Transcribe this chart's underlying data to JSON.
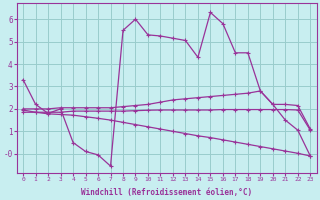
{
  "xlabel": "Windchill (Refroidissement éolien,°C)",
  "bg_color": "#c8eef0",
  "grid_color": "#99cccc",
  "line_color": "#993399",
  "xlim": [
    -0.5,
    23.5
  ],
  "ylim": [
    -0.85,
    6.7
  ],
  "xticks": [
    0,
    1,
    2,
    3,
    4,
    5,
    6,
    7,
    8,
    9,
    10,
    11,
    12,
    13,
    14,
    15,
    16,
    17,
    18,
    19,
    20,
    21,
    22,
    23
  ],
  "yticks": [
    0,
    1,
    2,
    3,
    4,
    5,
    6
  ],
  "ytick_labels": [
    "-0",
    "1",
    "2",
    "3",
    "4",
    "5",
    "6"
  ],
  "lines": [
    {
      "x": [
        0,
        1,
        2,
        3,
        4,
        5,
        6,
        7,
        8,
        9,
        10,
        11,
        12,
        13,
        14,
        15,
        16,
        17,
        18,
        19,
        20,
        21,
        22,
        23
      ],
      "y": [
        3.3,
        2.2,
        1.8,
        2.0,
        0.5,
        0.1,
        -0.05,
        -0.55,
        5.5,
        6.0,
        5.3,
        5.25,
        5.15,
        5.05,
        4.3,
        6.3,
        5.8,
        4.5,
        4.5,
        2.8,
        2.2,
        1.5,
        1.05,
        -0.1
      ]
    },
    {
      "x": [
        0,
        1,
        2,
        3,
        4,
        5,
        6,
        7,
        8,
        9,
        10,
        11,
        12,
        13,
        14,
        15,
        16,
        17,
        18,
        19,
        20,
        21,
        22,
        23
      ],
      "y": [
        2.0,
        2.0,
        2.0,
        2.05,
        2.05,
        2.05,
        2.05,
        2.05,
        2.1,
        2.15,
        2.2,
        2.3,
        2.4,
        2.45,
        2.5,
        2.55,
        2.6,
        2.65,
        2.7,
        2.8,
        2.2,
        2.2,
        2.15,
        1.1
      ]
    },
    {
      "x": [
        0,
        1,
        2,
        3,
        4,
        5,
        6,
        7,
        8,
        9,
        10,
        11,
        12,
        13,
        14,
        15,
        16,
        17,
        18,
        19,
        20,
        21,
        22,
        23
      ],
      "y": [
        1.85,
        1.85,
        1.85,
        1.85,
        1.9,
        1.9,
        1.9,
        1.9,
        1.9,
        1.92,
        1.94,
        1.95,
        1.95,
        1.95,
        1.95,
        1.95,
        1.97,
        1.97,
        1.97,
        1.97,
        1.97,
        1.97,
        1.95,
        1.05
      ]
    },
    {
      "x": [
        0,
        1,
        2,
        3,
        4,
        5,
        6,
        7,
        8,
        9,
        10,
        11,
        12,
        13,
        14,
        15,
        16,
        17,
        18,
        19,
        20,
        21,
        22,
        23
      ],
      "y": [
        1.95,
        1.85,
        1.78,
        1.75,
        1.72,
        1.65,
        1.58,
        1.5,
        1.4,
        1.3,
        1.2,
        1.1,
        1.0,
        0.9,
        0.8,
        0.72,
        0.62,
        0.52,
        0.42,
        0.32,
        0.22,
        0.12,
        0.02,
        -0.1
      ]
    }
  ]
}
